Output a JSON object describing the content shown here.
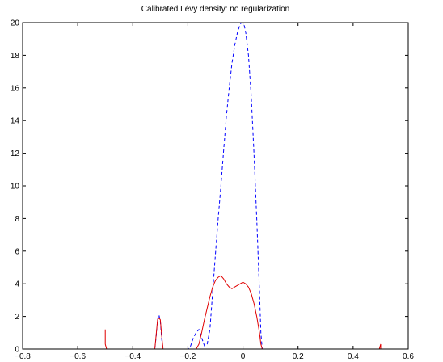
{
  "chart_data": {
    "type": "line",
    "title": "Calibrated Lévy density: no regularization",
    "xlabel": "",
    "ylabel": "",
    "xlim": [
      -0.8,
      0.6
    ],
    "ylim": [
      0,
      20
    ],
    "xticks": [
      -0.8,
      -0.6,
      -0.4,
      -0.2,
      0,
      0.2,
      0.4,
      0.6
    ],
    "xtick_labels": [
      "−0.8",
      "−0.6",
      "−0.4",
      "−0.2",
      "0",
      "0.2",
      "0.4",
      "0.6"
    ],
    "yticks": [
      0,
      2,
      4,
      6,
      8,
      10,
      12,
      14,
      16,
      18,
      20
    ],
    "ytick_labels": [
      "0",
      "2",
      "4",
      "6",
      "8",
      "10",
      "12",
      "14",
      "16",
      "18",
      "20"
    ],
    "grid": false,
    "legend": "none",
    "series": [
      {
        "style": "dashed",
        "color": "#0000ff",
        "x": [
          -0.5,
          -0.32,
          -0.315,
          -0.31,
          -0.305,
          -0.3,
          -0.295,
          -0.29,
          -0.2,
          -0.19,
          -0.18,
          -0.17,
          -0.16,
          -0.15,
          -0.14,
          -0.13,
          -0.12,
          -0.11,
          -0.1,
          -0.09,
          -0.08,
          -0.07,
          -0.06,
          -0.05,
          -0.04,
          -0.03,
          -0.02,
          -0.01,
          -0.005,
          0,
          0.005,
          0.01,
          0.02,
          0.03,
          0.04,
          0.05,
          0.06,
          0.065,
          0.07,
          0.5
        ],
        "y": [
          0,
          0,
          0.8,
          1.8,
          2.1,
          1.7,
          0.6,
          0,
          0,
          0.2,
          0.7,
          1.0,
          1.2,
          0.7,
          0.2,
          0.3,
          1.2,
          3.5,
          5.8,
          8.0,
          10.0,
          12.2,
          14.3,
          16.0,
          17.5,
          18.6,
          19.4,
          19.9,
          20.0,
          19.95,
          19.8,
          19.4,
          18.0,
          15.5,
          12.0,
          8.0,
          3.5,
          1.0,
          0,
          0
        ]
      },
      {
        "style": "solid",
        "color": "#e00000",
        "x": [
          -0.5,
          -0.5,
          -0.495,
          -0.32,
          -0.315,
          -0.31,
          -0.305,
          -0.3,
          -0.295,
          -0.29,
          -0.17,
          -0.16,
          -0.15,
          -0.14,
          -0.13,
          -0.12,
          -0.11,
          -0.1,
          -0.09,
          -0.08,
          -0.07,
          -0.06,
          -0.05,
          -0.04,
          -0.03,
          -0.02,
          -0.01,
          0,
          0.01,
          0.02,
          0.03,
          0.04,
          0.05,
          0.06,
          0.065,
          0.07,
          0.495,
          0.5,
          0.5
        ],
        "y": [
          1.2,
          0.3,
          0,
          0,
          0.9,
          1.8,
          1.9,
          1.8,
          0.8,
          0,
          0,
          0.3,
          1.0,
          1.8,
          2.5,
          3.2,
          3.8,
          4.2,
          4.4,
          4.5,
          4.3,
          4.0,
          3.8,
          3.7,
          3.8,
          3.9,
          4.0,
          4.1,
          4.0,
          3.8,
          3.4,
          2.8,
          2.0,
          1.0,
          0.3,
          0,
          0,
          0.3,
          0.0
        ]
      }
    ]
  }
}
